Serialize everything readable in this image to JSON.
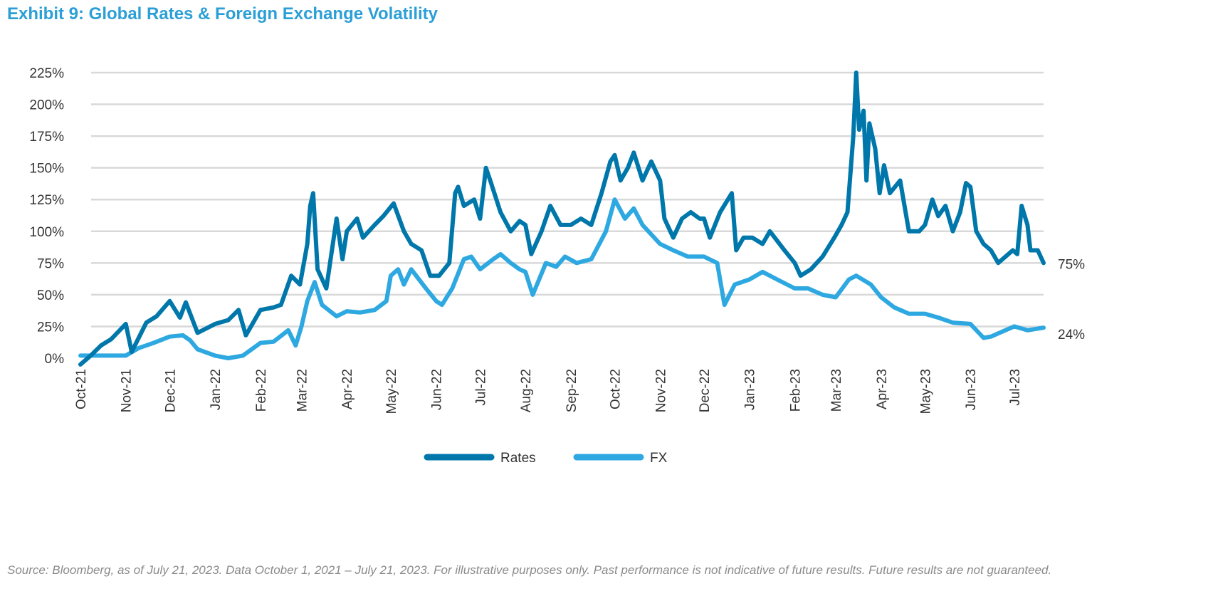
{
  "title": "Exhibit 9: Global Rates & Foreign Exchange Volatility",
  "source": "Source: Bloomberg, as of July 21, 2023. Data October 1, 2021 – July 21, 2023. For illustrative purposes only. Past performance is not indicative of future results. Future results are not guaranteed.",
  "chart_data": {
    "type": "line",
    "title": "Exhibit 9: Global Rates & Foreign Exchange Volatility",
    "xlabel": "",
    "ylabel": "",
    "ylim": [
      0,
      225
    ],
    "xlim": [
      "2021-10-01",
      "2023-07-21"
    ],
    "grid": true,
    "legend_position": "bottom",
    "y_ticks": [
      "0%",
      "25%",
      "50%",
      "75%",
      "100%",
      "125%",
      "150%",
      "175%",
      "200%",
      "225%"
    ],
    "x_ticks": [
      {
        "date": "2021-10-01",
        "label": "Oct-21"
      },
      {
        "date": "2021-11-01",
        "label": "Nov-21"
      },
      {
        "date": "2021-12-01",
        "label": "Dec-21"
      },
      {
        "date": "2022-01-01",
        "label": "Jan-22"
      },
      {
        "date": "2022-02-01",
        "label": "Feb-22"
      },
      {
        "date": "2022-03-01",
        "label": "Mar-22"
      },
      {
        "date": "2022-04-01",
        "label": "Apr-22"
      },
      {
        "date": "2022-05-01",
        "label": "May-22"
      },
      {
        "date": "2022-06-01",
        "label": "Jun-22"
      },
      {
        "date": "2022-07-01",
        "label": "Jul-22"
      },
      {
        "date": "2022-08-01",
        "label": "Aug-22"
      },
      {
        "date": "2022-09-01",
        "label": "Sep-22"
      },
      {
        "date": "2022-10-01",
        "label": "Oct-22"
      },
      {
        "date": "2022-11-01",
        "label": "Nov-22"
      },
      {
        "date": "2022-12-01",
        "label": "Dec-22"
      },
      {
        "date": "2023-01-01",
        "label": "Jan-23"
      },
      {
        "date": "2023-02-01",
        "label": "Feb-23"
      },
      {
        "date": "2023-03-01",
        "label": "Mar-23"
      },
      {
        "date": "2023-04-01",
        "label": "Apr-23"
      },
      {
        "date": "2023-05-01",
        "label": "May-23"
      },
      {
        "date": "2023-06-01",
        "label": "Jun-23"
      },
      {
        "date": "2023-07-01",
        "label": "Jul-23"
      }
    ],
    "series": [
      {
        "name": "Rates",
        "color": "#0077aa",
        "end_label": "75%",
        "points": [
          [
            "2021-10-01",
            -5
          ],
          [
            "2021-10-08",
            2
          ],
          [
            "2021-10-15",
            10
          ],
          [
            "2021-10-22",
            15
          ],
          [
            "2021-11-01",
            27
          ],
          [
            "2021-11-05",
            5
          ],
          [
            "2021-11-15",
            28
          ],
          [
            "2021-11-22",
            33
          ],
          [
            "2021-12-01",
            45
          ],
          [
            "2021-12-08",
            32
          ],
          [
            "2021-12-12",
            44
          ],
          [
            "2021-12-20",
            20
          ],
          [
            "2022-01-01",
            27
          ],
          [
            "2022-01-10",
            30
          ],
          [
            "2022-01-17",
            38
          ],
          [
            "2022-01-22",
            18
          ],
          [
            "2022-02-01",
            38
          ],
          [
            "2022-02-10",
            40
          ],
          [
            "2022-02-15",
            42
          ],
          [
            "2022-02-22",
            65
          ],
          [
            "2022-02-28",
            58
          ],
          [
            "2022-03-05",
            90
          ],
          [
            "2022-03-07",
            120
          ],
          [
            "2022-03-09",
            130
          ],
          [
            "2022-03-12",
            70
          ],
          [
            "2022-03-18",
            55
          ],
          [
            "2022-03-25",
            110
          ],
          [
            "2022-03-29",
            78
          ],
          [
            "2022-04-01",
            100
          ],
          [
            "2022-04-08",
            110
          ],
          [
            "2022-04-12",
            95
          ],
          [
            "2022-04-20",
            105
          ],
          [
            "2022-04-26",
            112
          ],
          [
            "2022-05-03",
            122
          ],
          [
            "2022-05-10",
            100
          ],
          [
            "2022-05-15",
            90
          ],
          [
            "2022-05-22",
            85
          ],
          [
            "2022-05-28",
            65
          ],
          [
            "2022-06-03",
            65
          ],
          [
            "2022-06-10",
            75
          ],
          [
            "2022-06-14",
            130
          ],
          [
            "2022-06-16",
            135
          ],
          [
            "2022-06-20",
            120
          ],
          [
            "2022-06-27",
            125
          ],
          [
            "2022-07-01",
            110
          ],
          [
            "2022-07-05",
            150
          ],
          [
            "2022-07-08",
            140
          ],
          [
            "2022-07-15",
            115
          ],
          [
            "2022-07-22",
            100
          ],
          [
            "2022-07-28",
            108
          ],
          [
            "2022-08-01",
            105
          ],
          [
            "2022-08-05",
            82
          ],
          [
            "2022-08-12",
            100
          ],
          [
            "2022-08-18",
            120
          ],
          [
            "2022-08-25",
            105
          ],
          [
            "2022-09-01",
            105
          ],
          [
            "2022-09-08",
            110
          ],
          [
            "2022-09-15",
            105
          ],
          [
            "2022-09-22",
            130
          ],
          [
            "2022-09-28",
            155
          ],
          [
            "2022-10-01",
            160
          ],
          [
            "2022-10-05",
            140
          ],
          [
            "2022-10-10",
            150
          ],
          [
            "2022-10-14",
            162
          ],
          [
            "2022-10-20",
            140
          ],
          [
            "2022-10-26",
            155
          ],
          [
            "2022-11-01",
            140
          ],
          [
            "2022-11-04",
            110
          ],
          [
            "2022-11-10",
            95
          ],
          [
            "2022-11-16",
            110
          ],
          [
            "2022-11-22",
            115
          ],
          [
            "2022-11-28",
            110
          ],
          [
            "2022-12-01",
            110
          ],
          [
            "2022-12-05",
            95
          ],
          [
            "2022-12-12",
            115
          ],
          [
            "2022-12-20",
            130
          ],
          [
            "2022-12-23",
            85
          ],
          [
            "2022-12-28",
            95
          ],
          [
            "2023-01-03",
            95
          ],
          [
            "2023-01-10",
            90
          ],
          [
            "2023-01-15",
            100
          ],
          [
            "2023-01-25",
            85
          ],
          [
            "2023-02-01",
            75
          ],
          [
            "2023-02-05",
            65
          ],
          [
            "2023-02-12",
            70
          ],
          [
            "2023-02-20",
            80
          ],
          [
            "2023-02-28",
            95
          ],
          [
            "2023-03-05",
            105
          ],
          [
            "2023-03-09",
            115
          ],
          [
            "2023-03-13",
            175
          ],
          [
            "2023-03-15",
            225
          ],
          [
            "2023-03-17",
            180
          ],
          [
            "2023-03-20",
            195
          ],
          [
            "2023-03-22",
            140
          ],
          [
            "2023-03-24",
            185
          ],
          [
            "2023-03-28",
            165
          ],
          [
            "2023-03-31",
            130
          ],
          [
            "2023-04-03",
            152
          ],
          [
            "2023-04-07",
            130
          ],
          [
            "2023-04-14",
            140
          ],
          [
            "2023-04-20",
            100
          ],
          [
            "2023-04-27",
            100
          ],
          [
            "2023-05-01",
            105
          ],
          [
            "2023-05-06",
            125
          ],
          [
            "2023-05-10",
            112
          ],
          [
            "2023-05-15",
            120
          ],
          [
            "2023-05-20",
            100
          ],
          [
            "2023-05-25",
            115
          ],
          [
            "2023-05-29",
            138
          ],
          [
            "2023-06-01",
            135
          ],
          [
            "2023-06-05",
            100
          ],
          [
            "2023-06-10",
            90
          ],
          [
            "2023-06-15",
            85
          ],
          [
            "2023-06-20",
            75
          ],
          [
            "2023-06-25",
            80
          ],
          [
            "2023-06-30",
            85
          ],
          [
            "2023-07-03",
            82
          ],
          [
            "2023-07-06",
            120
          ],
          [
            "2023-07-10",
            105
          ],
          [
            "2023-07-12",
            85
          ],
          [
            "2023-07-17",
            85
          ],
          [
            "2023-07-21",
            75
          ]
        ]
      },
      {
        "name": "FX",
        "color": "#2ea8e0",
        "end_label": "24%",
        "points": [
          [
            "2021-10-01",
            2
          ],
          [
            "2021-10-15",
            2
          ],
          [
            "2021-11-01",
            2
          ],
          [
            "2021-11-10",
            8
          ],
          [
            "2021-11-20",
            12
          ],
          [
            "2021-12-01",
            17
          ],
          [
            "2021-12-10",
            18
          ],
          [
            "2021-12-15",
            14
          ],
          [
            "2021-12-20",
            7
          ],
          [
            "2022-01-01",
            2
          ],
          [
            "2022-01-10",
            0
          ],
          [
            "2022-01-20",
            2
          ],
          [
            "2022-02-01",
            12
          ],
          [
            "2022-02-10",
            13
          ],
          [
            "2022-02-20",
            22
          ],
          [
            "2022-02-25",
            10
          ],
          [
            "2022-03-01",
            25
          ],
          [
            "2022-03-05",
            45
          ],
          [
            "2022-03-10",
            60
          ],
          [
            "2022-03-15",
            42
          ],
          [
            "2022-03-25",
            33
          ],
          [
            "2022-04-01",
            37
          ],
          [
            "2022-04-10",
            36
          ],
          [
            "2022-04-20",
            38
          ],
          [
            "2022-04-28",
            45
          ],
          [
            "2022-05-01",
            65
          ],
          [
            "2022-05-06",
            70
          ],
          [
            "2022-05-10",
            58
          ],
          [
            "2022-05-15",
            70
          ],
          [
            "2022-05-25",
            55
          ],
          [
            "2022-06-01",
            45
          ],
          [
            "2022-06-05",
            42
          ],
          [
            "2022-06-12",
            55
          ],
          [
            "2022-06-20",
            78
          ],
          [
            "2022-06-25",
            80
          ],
          [
            "2022-07-01",
            70
          ],
          [
            "2022-07-10",
            78
          ],
          [
            "2022-07-15",
            82
          ],
          [
            "2022-07-22",
            75
          ],
          [
            "2022-07-28",
            70
          ],
          [
            "2022-08-01",
            68
          ],
          [
            "2022-08-06",
            50
          ],
          [
            "2022-08-15",
            75
          ],
          [
            "2022-08-22",
            72
          ],
          [
            "2022-08-28",
            80
          ],
          [
            "2022-09-05",
            75
          ],
          [
            "2022-09-15",
            78
          ],
          [
            "2022-09-25",
            100
          ],
          [
            "2022-10-01",
            125
          ],
          [
            "2022-10-08",
            110
          ],
          [
            "2022-10-14",
            118
          ],
          [
            "2022-10-20",
            105
          ],
          [
            "2022-11-01",
            90
          ],
          [
            "2022-11-10",
            85
          ],
          [
            "2022-11-20",
            80
          ],
          [
            "2022-12-01",
            80
          ],
          [
            "2022-12-10",
            75
          ],
          [
            "2022-12-15",
            42
          ],
          [
            "2022-12-22",
            58
          ],
          [
            "2023-01-01",
            62
          ],
          [
            "2023-01-10",
            68
          ],
          [
            "2023-01-20",
            62
          ],
          [
            "2023-02-01",
            55
          ],
          [
            "2023-02-10",
            55
          ],
          [
            "2023-02-20",
            50
          ],
          [
            "2023-03-01",
            48
          ],
          [
            "2023-03-10",
            62
          ],
          [
            "2023-03-15",
            65
          ],
          [
            "2023-03-25",
            58
          ],
          [
            "2023-04-01",
            48
          ],
          [
            "2023-04-10",
            40
          ],
          [
            "2023-04-20",
            35
          ],
          [
            "2023-05-01",
            35
          ],
          [
            "2023-05-10",
            32
          ],
          [
            "2023-05-20",
            28
          ],
          [
            "2023-06-01",
            27
          ],
          [
            "2023-06-10",
            16
          ],
          [
            "2023-06-15",
            17
          ],
          [
            "2023-06-25",
            22
          ],
          [
            "2023-07-01",
            25
          ],
          [
            "2023-07-10",
            22
          ],
          [
            "2023-07-21",
            24
          ]
        ]
      }
    ]
  }
}
